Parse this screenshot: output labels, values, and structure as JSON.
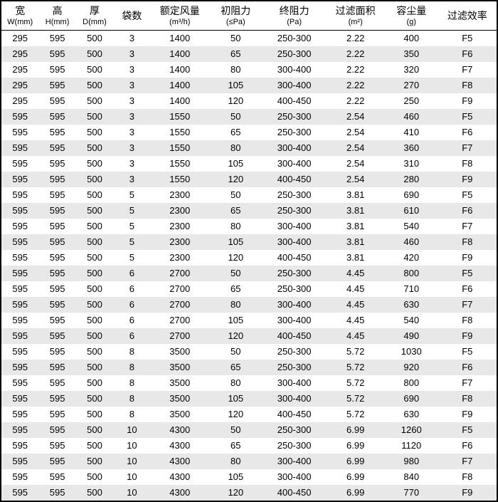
{
  "table": {
    "columns": [
      {
        "main": "宽",
        "sub": "W(mm)",
        "width": "7%"
      },
      {
        "main": "高",
        "sub": "H(mm)",
        "width": "7%"
      },
      {
        "main": "厚",
        "sub": "D(mm)",
        "width": "7%"
      },
      {
        "main": "袋数",
        "sub": "",
        "width": "7%"
      },
      {
        "main": "额定风量",
        "sub": "(m³/h)",
        "width": "11%"
      },
      {
        "main": "初阻力",
        "sub": "(≤Pa)",
        "width": "10%"
      },
      {
        "main": "终阻力",
        "sub": "(Pa)",
        "width": "12%"
      },
      {
        "main": "过滤面积",
        "sub": "(m²)",
        "width": "11%"
      },
      {
        "main": "容尘量",
        "sub": "(g)",
        "width": "10%"
      },
      {
        "main": "过滤效率",
        "sub": "",
        "width": "11%"
      }
    ],
    "rows": [
      [
        "295",
        "595",
        "500",
        "3",
        "1400",
        "50",
        "250-300",
        "2.22",
        "400",
        "F5"
      ],
      [
        "295",
        "595",
        "500",
        "3",
        "1400",
        "65",
        "250-300",
        "2.22",
        "350",
        "F6"
      ],
      [
        "295",
        "595",
        "500",
        "3",
        "1400",
        "80",
        "300-400",
        "2.22",
        "320",
        "F7"
      ],
      [
        "295",
        "595",
        "500",
        "3",
        "1400",
        "105",
        "300-400",
        "2.22",
        "270",
        "F8"
      ],
      [
        "295",
        "595",
        "500",
        "3",
        "1400",
        "120",
        "400-450",
        "2.22",
        "250",
        "F9"
      ],
      [
        "595",
        "595",
        "500",
        "3",
        "1550",
        "50",
        "250-300",
        "2.54",
        "460",
        "F5"
      ],
      [
        "595",
        "595",
        "500",
        "3",
        "1550",
        "65",
        "250-300",
        "2.54",
        "410",
        "F6"
      ],
      [
        "595",
        "595",
        "500",
        "3",
        "1550",
        "80",
        "300-400",
        "2.54",
        "360",
        "F7"
      ],
      [
        "595",
        "595",
        "500",
        "3",
        "1550",
        "105",
        "300-400",
        "2.54",
        "310",
        "F8"
      ],
      [
        "595",
        "595",
        "500",
        "3",
        "1550",
        "120",
        "400-450",
        "2.54",
        "280",
        "F9"
      ],
      [
        "595",
        "595",
        "500",
        "5",
        "2300",
        "50",
        "250-300",
        "3.81",
        "690",
        "F5"
      ],
      [
        "595",
        "595",
        "500",
        "5",
        "2300",
        "65",
        "250-300",
        "3.81",
        "610",
        "F6"
      ],
      [
        "595",
        "595",
        "500",
        "5",
        "2300",
        "80",
        "300-400",
        "3.81",
        "540",
        "F7"
      ],
      [
        "595",
        "595",
        "500",
        "5",
        "2300",
        "105",
        "300-400",
        "3.81",
        "460",
        "F8"
      ],
      [
        "595",
        "595",
        "500",
        "5",
        "2300",
        "120",
        "400-450",
        "3.81",
        "420",
        "F9"
      ],
      [
        "595",
        "595",
        "500",
        "6",
        "2700",
        "50",
        "250-300",
        "4.45",
        "800",
        "F5"
      ],
      [
        "595",
        "595",
        "500",
        "6",
        "2700",
        "65",
        "250-300",
        "4.45",
        "710",
        "F6"
      ],
      [
        "595",
        "595",
        "500",
        "6",
        "2700",
        "80",
        "300-400",
        "4.45",
        "630",
        "F7"
      ],
      [
        "595",
        "595",
        "500",
        "6",
        "2700",
        "105",
        "300-400",
        "4.45",
        "540",
        "F8"
      ],
      [
        "595",
        "595",
        "500",
        "6",
        "2700",
        "120",
        "400-450",
        "4.45",
        "490",
        "F9"
      ],
      [
        "595",
        "595",
        "500",
        "8",
        "3500",
        "50",
        "250-300",
        "5.72",
        "1030",
        "F5"
      ],
      [
        "595",
        "595",
        "500",
        "8",
        "3500",
        "65",
        "250-300",
        "5.72",
        "920",
        "F6"
      ],
      [
        "595",
        "595",
        "500",
        "8",
        "3500",
        "80",
        "300-400",
        "5.72",
        "800",
        "F7"
      ],
      [
        "595",
        "595",
        "500",
        "8",
        "3500",
        "105",
        "300-400",
        "5.72",
        "690",
        "F8"
      ],
      [
        "595",
        "595",
        "500",
        "8",
        "3500",
        "120",
        "400-450",
        "5.72",
        "630",
        "F9"
      ],
      [
        "595",
        "595",
        "500",
        "10",
        "4300",
        "50",
        "250-300",
        "6.99",
        "1260",
        "F5"
      ],
      [
        "595",
        "595",
        "500",
        "10",
        "4300",
        "65",
        "250-300",
        "6.99",
        "1120",
        "F6"
      ],
      [
        "595",
        "595",
        "500",
        "10",
        "4300",
        "80",
        "300-400",
        "6.99",
        "980",
        "F7"
      ],
      [
        "595",
        "595",
        "500",
        "10",
        "4300",
        "105",
        "300-400",
        "6.99",
        "840",
        "F8"
      ],
      [
        "595",
        "595",
        "500",
        "10",
        "4300",
        "120",
        "400-450",
        "6.99",
        "770",
        "F9"
      ]
    ],
    "colors": {
      "border": "#000000",
      "odd_row_bg": "#ffffff",
      "even_row_bg": "#e8e8e8",
      "text": "#000000"
    },
    "font": {
      "header_main_size": 14,
      "header_sub_size": 11,
      "body_size": 13,
      "family": "SimSun"
    }
  }
}
